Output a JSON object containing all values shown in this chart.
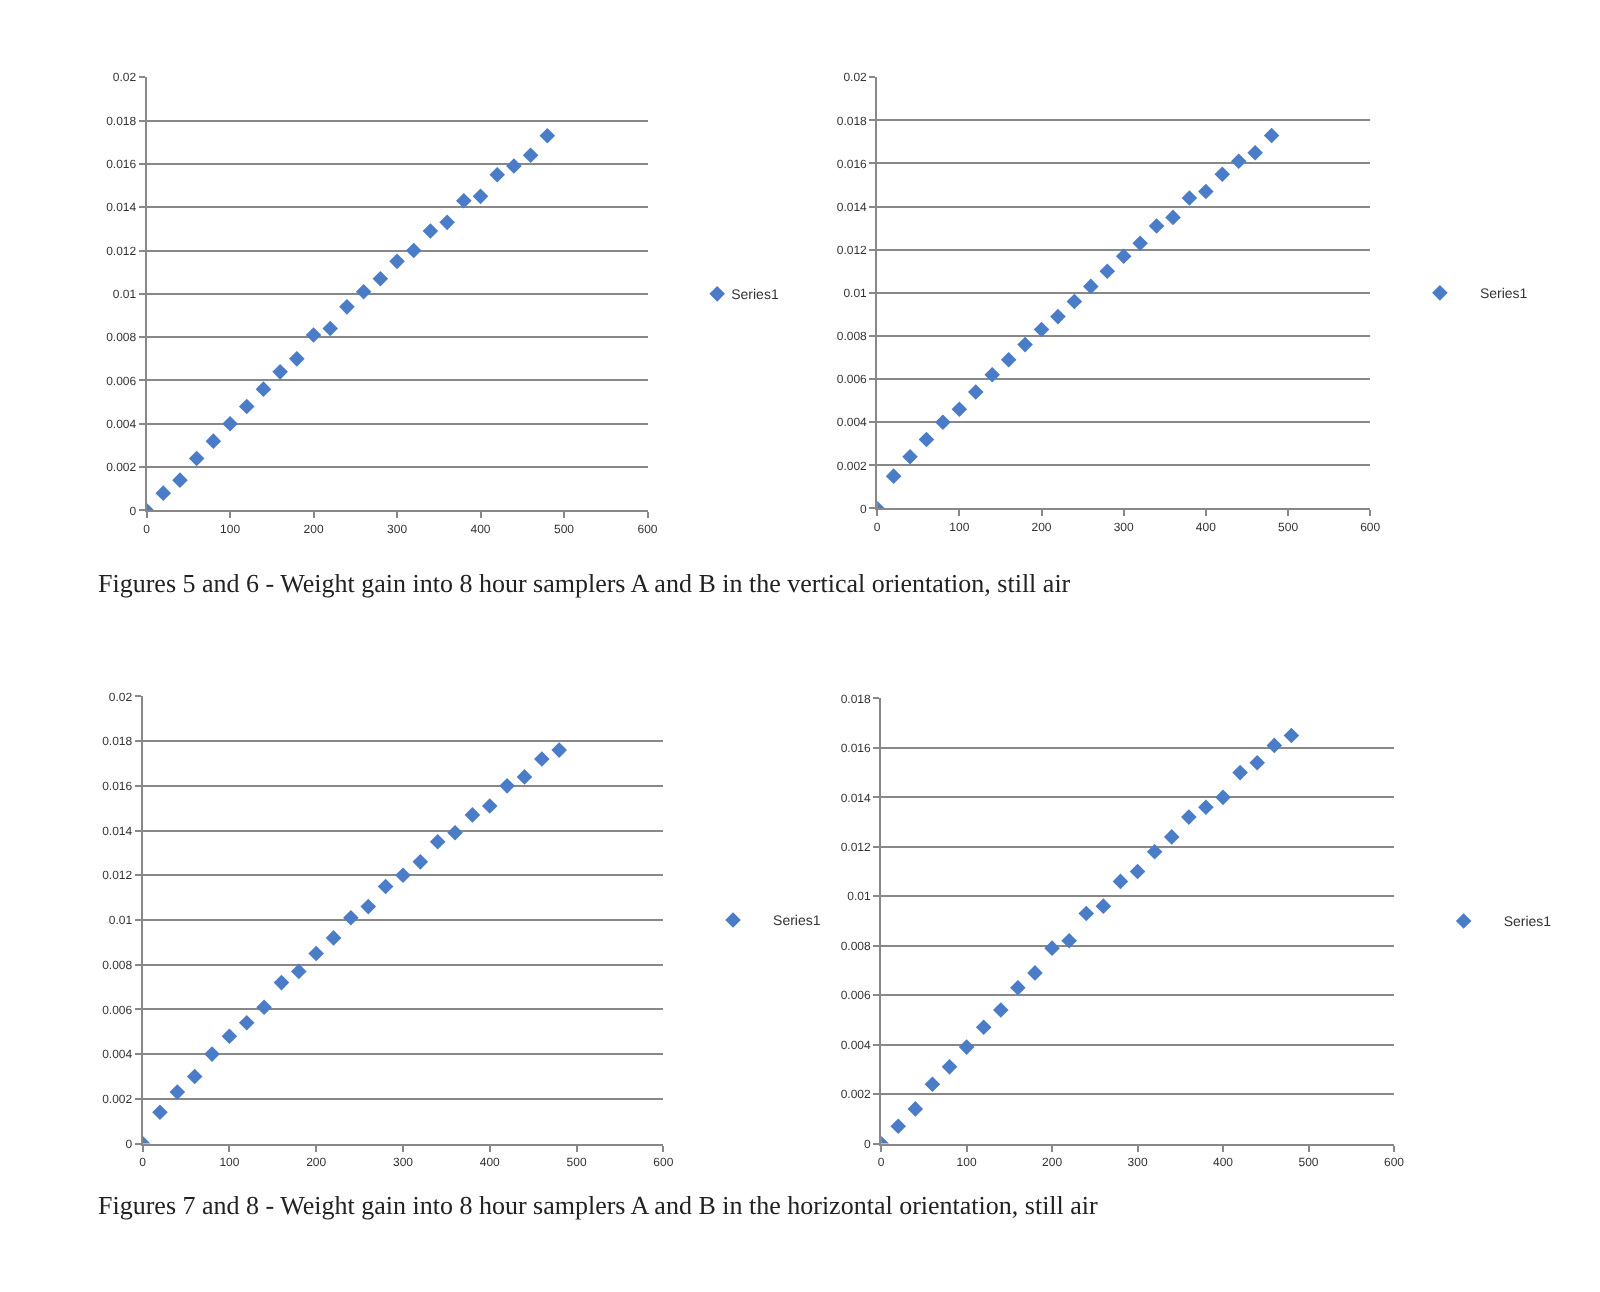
{
  "chart_data": [
    {
      "type": "scatter",
      "x": [
        0,
        20,
        40,
        60,
        80,
        100,
        120,
        140,
        160,
        180,
        200,
        220,
        240,
        260,
        280,
        300,
        320,
        340,
        360,
        380,
        400,
        420,
        440,
        460,
        480
      ],
      "series": [
        {
          "name": "Series1",
          "color": "#4a7cc7",
          "values": [
            0,
            0.0008,
            0.0014,
            0.0024,
            0.0032,
            0.004,
            0.0048,
            0.0056,
            0.0064,
            0.007,
            0.0081,
            0.0084,
            0.0094,
            0.0101,
            0.0107,
            0.0115,
            0.012,
            0.0129,
            0.0133,
            0.0143,
            0.0145,
            0.0155,
            0.0159,
            0.0164,
            0.0173
          ]
        }
      ],
      "xlim": [
        0,
        600
      ],
      "xticks": [
        0,
        100,
        200,
        300,
        400,
        500,
        600
      ],
      "ylim": [
        0,
        0.02
      ],
      "yticks": [
        0,
        0.002,
        0.004,
        0.006,
        0.008,
        0.01,
        0.012,
        0.014,
        0.016,
        0.018,
        0.02
      ],
      "grid": "y",
      "legend": "right",
      "marker": "diamond",
      "annotations": [
        "Figures 5 and 6 - Weight gain into 8 hour samplers A and B in the vertical orientation, still air"
      ]
    },
    {
      "type": "scatter",
      "x": [
        0,
        20,
        40,
        60,
        80,
        100,
        120,
        140,
        160,
        180,
        200,
        220,
        240,
        260,
        280,
        300,
        320,
        340,
        360,
        380,
        400,
        420,
        440,
        460,
        480
      ],
      "series": [
        {
          "name": "Series1",
          "color": "#4a7cc7",
          "values": [
            0,
            0.0015,
            0.0024,
            0.0032,
            0.004,
            0.0046,
            0.0054,
            0.0062,
            0.0069,
            0.0076,
            0.0083,
            0.0089,
            0.0096,
            0.0103,
            0.011,
            0.0117,
            0.0123,
            0.0131,
            0.0135,
            0.0144,
            0.0147,
            0.0155,
            0.0161,
            0.0165,
            0.0173
          ]
        }
      ],
      "xlim": [
        0,
        600
      ],
      "xticks": [
        0,
        100,
        200,
        300,
        400,
        500,
        600
      ],
      "ylim": [
        0,
        0.02
      ],
      "yticks": [
        0,
        0.002,
        0.004,
        0.006,
        0.008,
        0.01,
        0.012,
        0.014,
        0.016,
        0.018,
        0.02
      ],
      "grid": "y",
      "legend": "right",
      "marker": "diamond"
    },
    {
      "type": "scatter",
      "x": [
        0,
        20,
        40,
        60,
        80,
        100,
        120,
        140,
        160,
        180,
        200,
        220,
        240,
        260,
        280,
        300,
        320,
        340,
        360,
        380,
        400,
        420,
        440,
        460,
        480
      ],
      "series": [
        {
          "name": "Series1",
          "color": "#4a7cc7",
          "values": [
            0,
            0.0014,
            0.0023,
            0.003,
            0.004,
            0.0048,
            0.0054,
            0.0061,
            0.0072,
            0.0077,
            0.0085,
            0.0092,
            0.0101,
            0.0106,
            0.0115,
            0.012,
            0.0126,
            0.0135,
            0.0139,
            0.0147,
            0.0151,
            0.016,
            0.0164,
            0.0172,
            0.0176
          ]
        }
      ],
      "xlim": [
        0,
        600
      ],
      "xticks": [
        0,
        100,
        200,
        300,
        400,
        500,
        600
      ],
      "ylim": [
        0,
        0.02
      ],
      "yticks": [
        0,
        0.002,
        0.004,
        0.006,
        0.008,
        0.01,
        0.012,
        0.014,
        0.016,
        0.018,
        0.02
      ],
      "grid": "y",
      "legend": "right",
      "marker": "diamond",
      "annotations": [
        "Figures 7 and 8 - Weight gain into 8 hour samplers A and B in the horizontal orientation, still air"
      ]
    },
    {
      "type": "scatter",
      "x": [
        0,
        20,
        40,
        60,
        80,
        100,
        120,
        140,
        160,
        180,
        200,
        220,
        240,
        260,
        280,
        300,
        320,
        340,
        360,
        380,
        400,
        420,
        440,
        460,
        480
      ],
      "series": [
        {
          "name": "Series1",
          "color": "#4a7cc7",
          "values": [
            0,
            0.0007,
            0.0014,
            0.0024,
            0.0031,
            0.0039,
            0.0047,
            0.0054,
            0.0063,
            0.0069,
            0.0079,
            0.0082,
            0.0093,
            0.0096,
            0.0106,
            0.011,
            0.0118,
            0.0124,
            0.0132,
            0.0136,
            0.014,
            0.015,
            0.0154,
            0.0161,
            0.0165
          ]
        }
      ],
      "xlim": [
        0,
        600
      ],
      "xticks": [
        0,
        100,
        200,
        300,
        400,
        500,
        600
      ],
      "ylim": [
        0,
        0.018
      ],
      "yticks": [
        0,
        0.002,
        0.004,
        0.006,
        0.008,
        0.01,
        0.012,
        0.014,
        0.016,
        0.018
      ],
      "grid": "y",
      "legend": "right",
      "marker": "diamond"
    }
  ]
}
